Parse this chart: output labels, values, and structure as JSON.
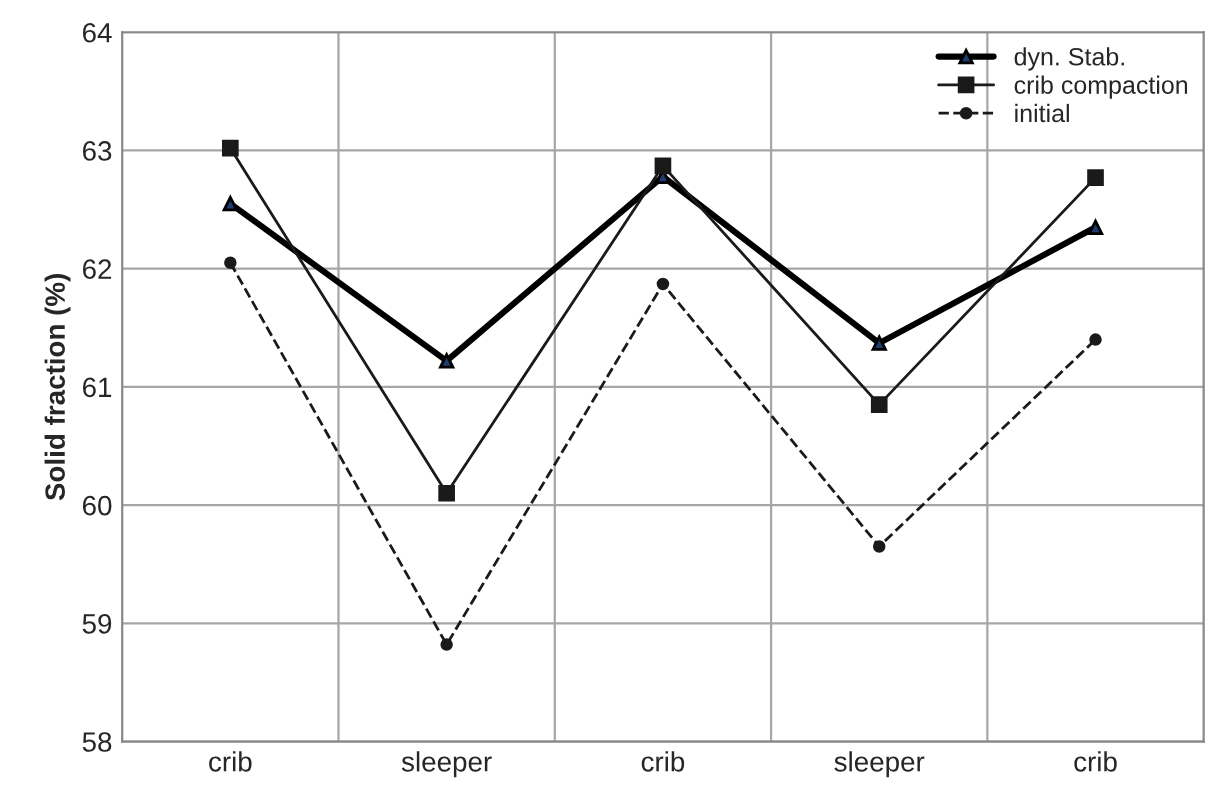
{
  "chart_data": {
    "type": "line",
    "ylabel": "Solid fraction (%)",
    "categories": [
      "crib",
      "sleeper",
      "crib",
      "sleeper",
      "crib"
    ],
    "series": [
      {
        "name": "dyn. Stab.",
        "color": "#000000",
        "values": [
          62.55,
          61.22,
          62.78,
          61.37,
          62.35
        ],
        "marker": "triangle",
        "line_style": "solid"
      },
      {
        "name": "crib compaction",
        "color": "#1a1a1a",
        "values": [
          63.02,
          60.1,
          62.87,
          60.85,
          62.77
        ],
        "marker": "square",
        "line_style": "solid"
      },
      {
        "name": "initial",
        "color": "#1a1a1a",
        "values": [
          62.05,
          58.82,
          61.87,
          59.65,
          61.4
        ],
        "marker": "circle",
        "line_style": "dashed"
      }
    ],
    "ylim": [
      58,
      64
    ],
    "yticks": [
      58,
      59,
      60,
      61,
      62,
      63,
      64
    ],
    "grid": true,
    "legend": "top right"
  }
}
